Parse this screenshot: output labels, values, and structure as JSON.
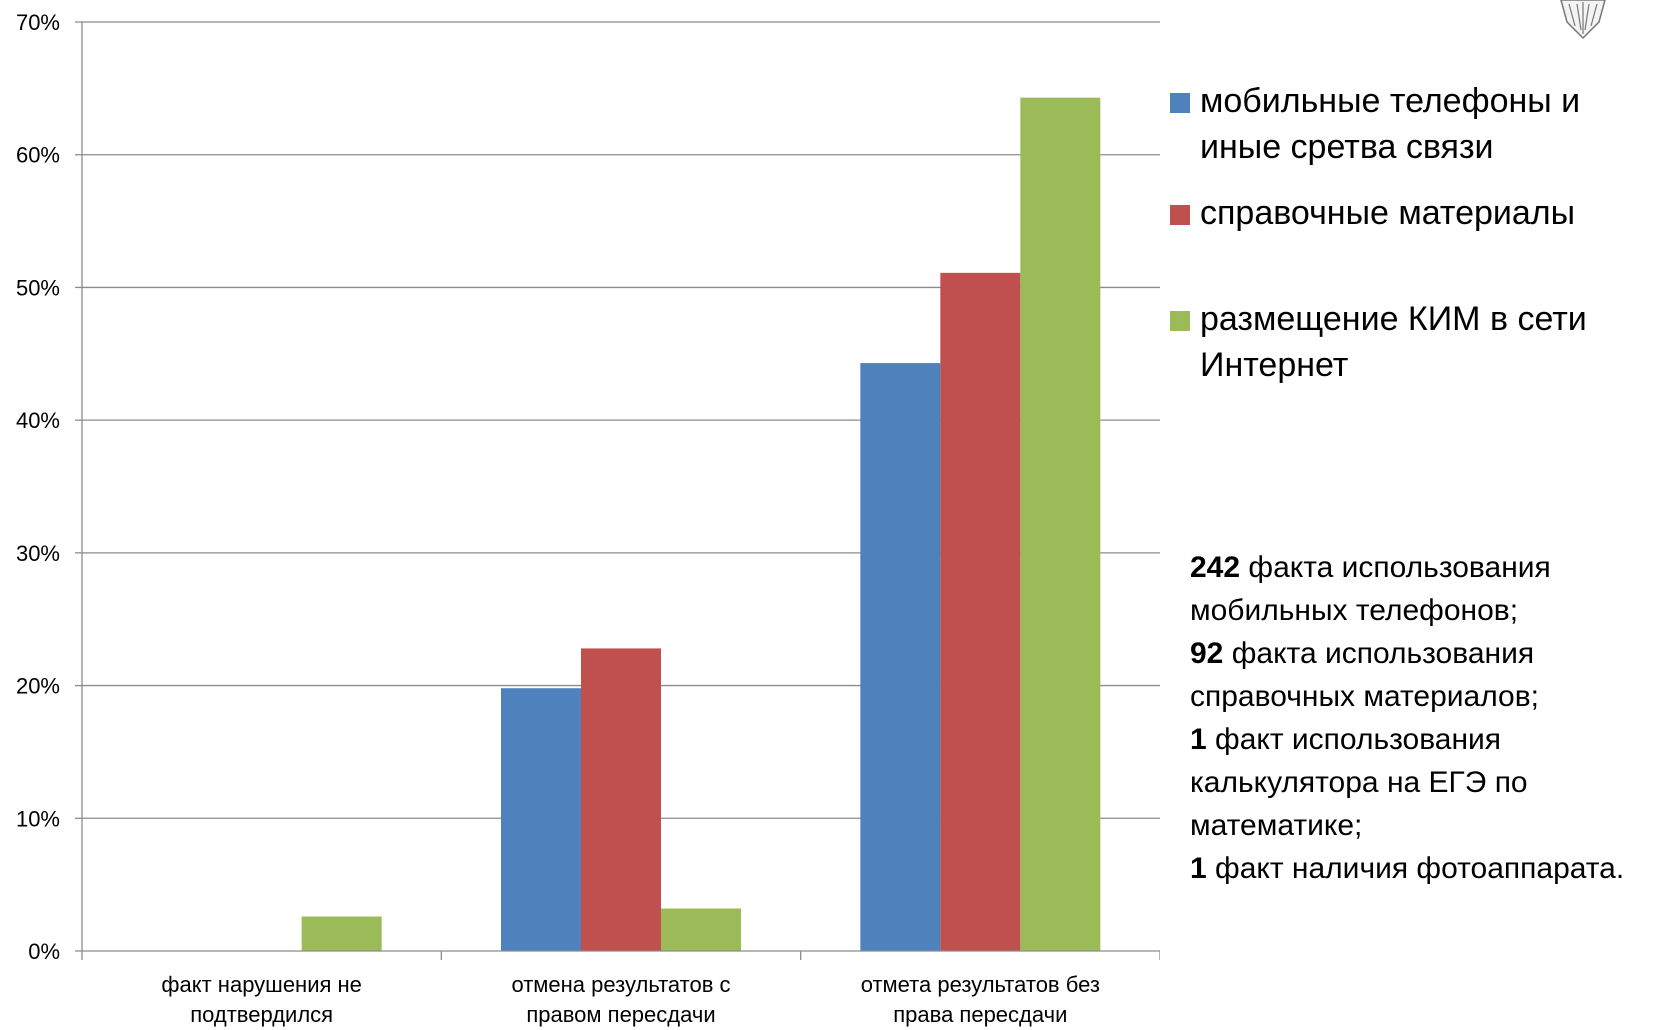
{
  "chart_data": {
    "type": "bar",
    "categories": [
      "факт нарушения не подтвердился",
      "отмена результатов с правом пересдачи",
      "отмета результатов без права пересдачи"
    ],
    "series": [
      {
        "name": "мобильные телефоны и иные сретва связи",
        "color": "#4F81BD",
        "values": [
          0,
          19.8,
          44.3
        ]
      },
      {
        "name": "справочные материалы",
        "color": "#C0504D",
        "values": [
          0,
          22.8,
          51.1
        ]
      },
      {
        "name": "размещение КИМ в сети Интернет",
        "color": "#9BBB59",
        "values": [
          2.6,
          3.2,
          64.3
        ]
      }
    ],
    "ylim": [
      0,
      70
    ],
    "yticks": [
      "0%",
      "10%",
      "20%",
      "30%",
      "40%",
      "50%",
      "60%",
      "70%"
    ],
    "grid": true,
    "legend_position": "right"
  },
  "legend": [
    {
      "label": "мобильные телефоны и иные сретва связи",
      "color": "#4F81BD"
    },
    {
      "label": "справочные материалы",
      "color": "#C0504D"
    },
    {
      "label": "размещение КИМ в сети Интернет",
      "color": "#9BBB59"
    }
  ],
  "notes": [
    {
      "num": "242",
      "text": " факта использования мобильных телефонов;"
    },
    {
      "num": "92",
      "text": " факта использования справочных материалов;"
    },
    {
      "num": "1",
      "text": " факт использования калькулятора на ЕГЭ по математике;"
    },
    {
      "num": "1",
      "text": " факт наличия фотоаппарата."
    }
  ]
}
